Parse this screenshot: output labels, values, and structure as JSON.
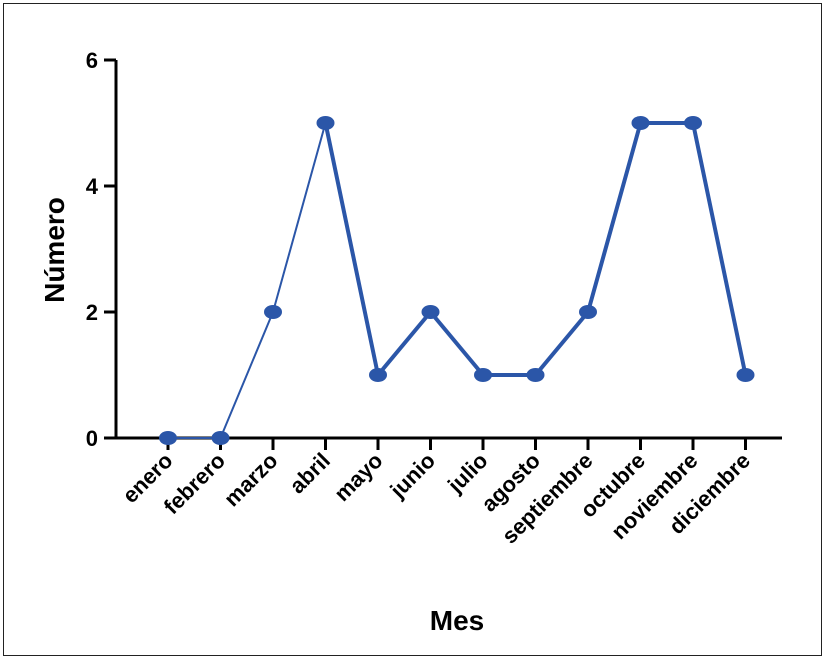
{
  "chart_data": {
    "type": "line",
    "xlabel": "Mes",
    "ylabel": "Número",
    "categories": [
      "enero",
      "febrero",
      "marzo",
      "abril",
      "mayo",
      "junio",
      "julio",
      "agosto",
      "septiembre",
      "octubre",
      "noviembre",
      "diciembre"
    ],
    "series": [
      {
        "values": [
          0,
          0,
          2,
          5,
          1,
          2,
          1,
          1,
          2,
          5,
          5,
          1
        ]
      }
    ],
    "ylim": [
      0,
      6
    ],
    "yticks": [
      "0",
      "2",
      "4",
      "6"
    ],
    "grid": false,
    "colors": {
      "series": "#2b56a8",
      "axis": "#000000"
    }
  }
}
